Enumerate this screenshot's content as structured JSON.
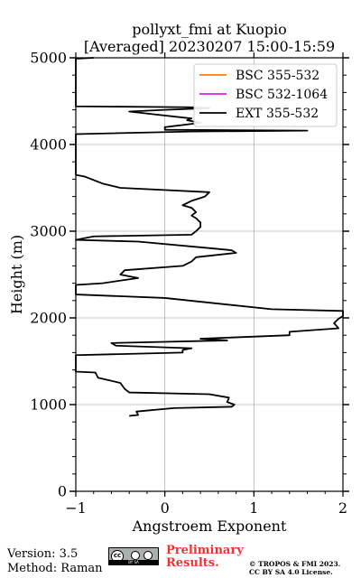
{
  "chart_data": {
    "type": "line",
    "title": "pollyxt_fmi at Kuopio",
    "subtitle": "[Averaged] 20230207 15:00-15:59",
    "xlabel": "Angstroem Exponent",
    "ylabel": "Height (m)",
    "xlim": [
      -1,
      2
    ],
    "ylim": [
      0,
      5000
    ],
    "xticks": [
      "−1",
      "0",
      "1",
      "2"
    ],
    "yticks": [
      "0",
      "1000",
      "2000",
      "3000",
      "4000",
      "5000"
    ],
    "xtick_values": [
      -1,
      0,
      1,
      2
    ],
    "ytick_values": [
      0,
      1000,
      2000,
      3000,
      4000,
      5000
    ],
    "grid": true,
    "legend_position": "top-right",
    "series": [
      {
        "name": "BSC 355-532",
        "color": "#ff7f0e",
        "points": []
      },
      {
        "name": "BSC 532-1064",
        "color": "#e020e0",
        "points": []
      },
      {
        "name": "EXT 355-532",
        "color": "#000000",
        "points": [
          [
            -0.4,
            870
          ],
          [
            -0.3,
            880
          ],
          [
            -0.32,
            920
          ],
          [
            0.1,
            960
          ],
          [
            0.75,
            975
          ],
          [
            0.78,
            1000
          ],
          [
            0.7,
            1030
          ],
          [
            0.72,
            1080
          ],
          [
            0.5,
            1120
          ],
          [
            -0.4,
            1140
          ],
          [
            -0.45,
            1180
          ],
          [
            -0.5,
            1250
          ],
          [
            -0.75,
            1310
          ],
          [
            -0.78,
            1370
          ],
          [
            -1.0,
            1380
          ],
          [
            -1.0,
            1570
          ],
          [
            0.2,
            1600
          ],
          [
            0.2,
            1630
          ],
          [
            0.3,
            1650
          ],
          [
            -0.55,
            1680
          ],
          [
            -0.6,
            1710
          ],
          [
            0.7,
            1740
          ],
          [
            0.4,
            1760
          ],
          [
            1.4,
            1800
          ],
          [
            1.4,
            1840
          ],
          [
            1.95,
            1880
          ],
          [
            1.9,
            1940
          ],
          [
            1.95,
            1990
          ],
          [
            2.0,
            2020
          ],
          [
            2.0,
            2080
          ],
          [
            1.2,
            2100
          ],
          [
            0.0,
            2230
          ],
          [
            -1.0,
            2270
          ],
          [
            -1.0,
            2380
          ],
          [
            -0.7,
            2400
          ],
          [
            -0.3,
            2460
          ],
          [
            -0.5,
            2500
          ],
          [
            -0.45,
            2550
          ],
          [
            0.2,
            2600
          ],
          [
            0.3,
            2650
          ],
          [
            0.35,
            2700
          ],
          [
            0.8,
            2750
          ],
          [
            0.75,
            2780
          ],
          [
            0.55,
            2800
          ],
          [
            -0.3,
            2880
          ],
          [
            -1.0,
            2900
          ],
          [
            -0.8,
            2940
          ],
          [
            0.3,
            2960
          ],
          [
            0.35,
            3000
          ],
          [
            0.4,
            3050
          ],
          [
            0.4,
            3100
          ],
          [
            0.35,
            3150
          ],
          [
            0.3,
            3180
          ],
          [
            0.35,
            3220
          ],
          [
            0.3,
            3270
          ],
          [
            0.2,
            3300
          ],
          [
            0.3,
            3350
          ],
          [
            0.45,
            3400
          ],
          [
            0.5,
            3450
          ],
          [
            -0.5,
            3500
          ],
          [
            -0.7,
            3550
          ],
          [
            -0.9,
            3630
          ],
          [
            -1.0,
            3650
          ],
          [
            -1.0,
            4120
          ],
          [
            0.3,
            4150
          ],
          [
            1.6,
            4160
          ],
          [
            0.0,
            4170
          ],
          [
            0.0,
            4200
          ],
          [
            0.4,
            4250
          ],
          [
            0.25,
            4280
          ],
          [
            0.3,
            4300
          ],
          [
            -0.4,
            4380
          ],
          [
            0.0,
            4400
          ],
          [
            0.5,
            4420
          ],
          [
            0.3,
            4430
          ],
          [
            -1.0,
            4440
          ],
          [
            -1.0,
            4990
          ],
          [
            -0.8,
            5000
          ]
        ]
      }
    ]
  },
  "footer": {
    "version": "Version: 3.5",
    "method": "Method: Raman",
    "license_badge_text": "BY SA",
    "preliminary_line1": "Preliminary",
    "preliminary_line2": "Results.",
    "copyright_line1": "© TROPOS & FMI 2023.",
    "copyright_line2": "CC BY SA 4.0 License."
  }
}
